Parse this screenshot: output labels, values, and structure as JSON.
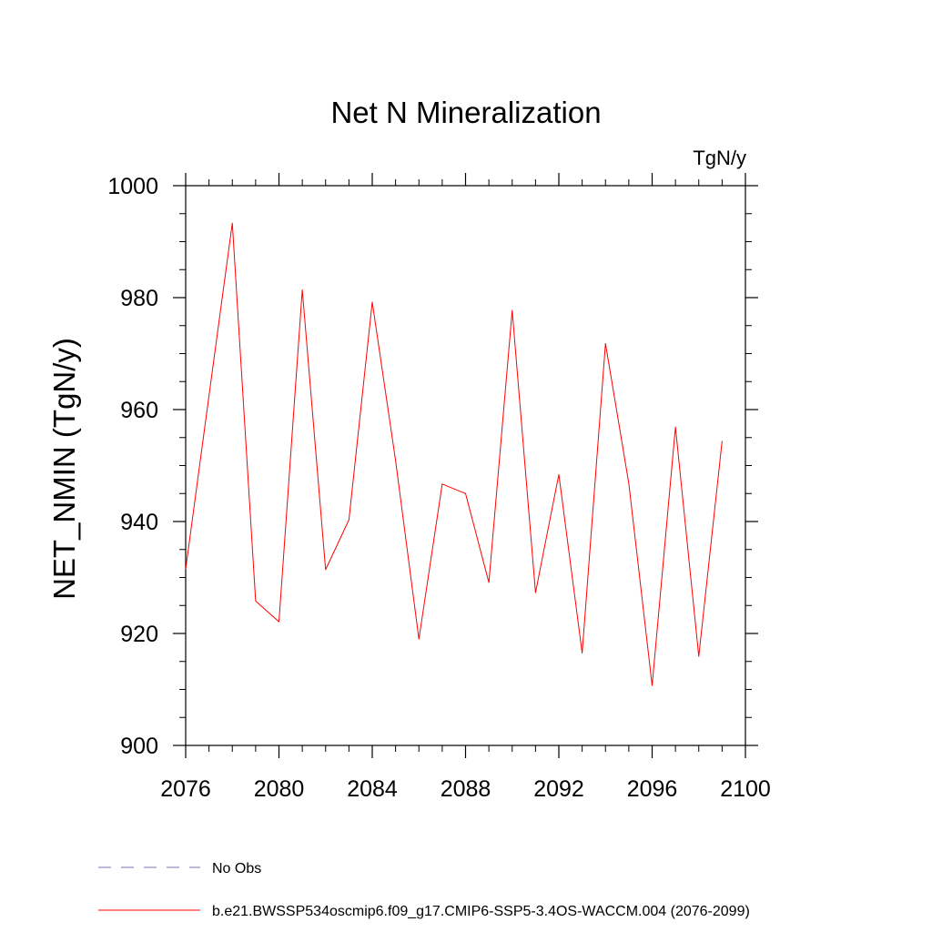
{
  "chart_data": {
    "type": "line",
    "title": "Net N Mineralization",
    "units": "TgN/y",
    "xlabel": "",
    "ylabel": "NET_NMIN  (TgN/y)",
    "xlim": [
      2076,
      2100
    ],
    "ylim": [
      900,
      1000
    ],
    "xticks": [
      2076,
      2080,
      2084,
      2088,
      2092,
      2096,
      2100
    ],
    "yticks": [
      900,
      920,
      940,
      960,
      980,
      1000
    ],
    "xminor_step": 1,
    "yminor_step": 5,
    "series": [
      {
        "name": "b.e21.BWSSP534oscmip6.f09_g17.CMIP6-SSP5-3.4OS-WACCM.004 (2076-2099)",
        "color": "#ff0000",
        "style": "solid",
        "x": [
          2076,
          2077,
          2078,
          2079,
          2080,
          2081,
          2082,
          2083,
          2084,
          2085,
          2086,
          2087,
          2088,
          2089,
          2090,
          2091,
          2092,
          2093,
          2094,
          2095,
          2096,
          2097,
          2098,
          2099
        ],
        "y": [
          931.5,
          962.5,
          993.3,
          925.8,
          922.1,
          981.4,
          931.4,
          940.3,
          979.2,
          950.9,
          919.0,
          946.7,
          945.0,
          929.1,
          977.7,
          927.3,
          948.4,
          916.5,
          971.8,
          946.8,
          910.7,
          956.9,
          915.9,
          954.4
        ]
      }
    ],
    "legend": [
      {
        "label": "No Obs",
        "color": "#7b6fb0",
        "style": "dashed"
      },
      {
        "label": "b.e21.BWSSP534oscmip6.f09_g17.CMIP6-SSP5-3.4OS-WACCM.004 (2076-2099)",
        "color": "#ff0000",
        "style": "solid"
      }
    ],
    "legend_position": "bottom-left"
  }
}
